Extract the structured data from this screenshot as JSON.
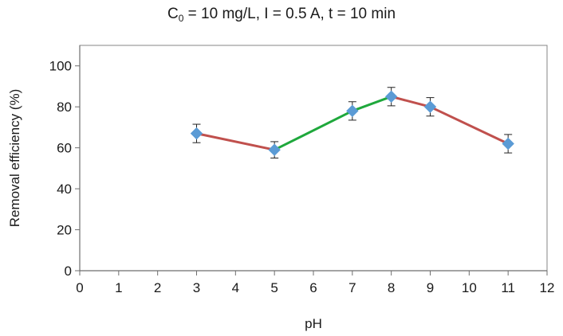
{
  "chart_data": {
    "type": "line",
    "title_main": "C",
    "title_sub": "0",
    "title_rest": " = 10 mg/L, I = 0.5 A, t = 10 min",
    "xlabel": "pH",
    "ylabel": "Removal efficiency (%)",
    "xlim": [
      0,
      12
    ],
    "ylim": [
      0,
      110
    ],
    "x_ticks": [
      0,
      1,
      2,
      3,
      4,
      5,
      6,
      7,
      8,
      9,
      10,
      11,
      12
    ],
    "y_ticks": [
      0,
      20,
      40,
      60,
      80,
      100
    ],
    "points": [
      {
        "x": 3,
        "y": 67,
        "err": 4.5
      },
      {
        "x": 5,
        "y": 59,
        "err": 4
      },
      {
        "x": 7,
        "y": 78,
        "err": 4.5
      },
      {
        "x": 8,
        "y": 85,
        "err": 4.5
      },
      {
        "x": 9,
        "y": 80,
        "err": 4.5
      },
      {
        "x": 11,
        "y": 62,
        "err": 4.5
      }
    ],
    "segments": [
      {
        "from": 0,
        "to": 1,
        "color": "#c0504d"
      },
      {
        "from": 1,
        "to": 3,
        "color": "#1fa83c"
      },
      {
        "from": 3,
        "to": 5,
        "color": "#c0504d"
      }
    ],
    "marker_color": "#5b9bd5",
    "grid": false
  }
}
